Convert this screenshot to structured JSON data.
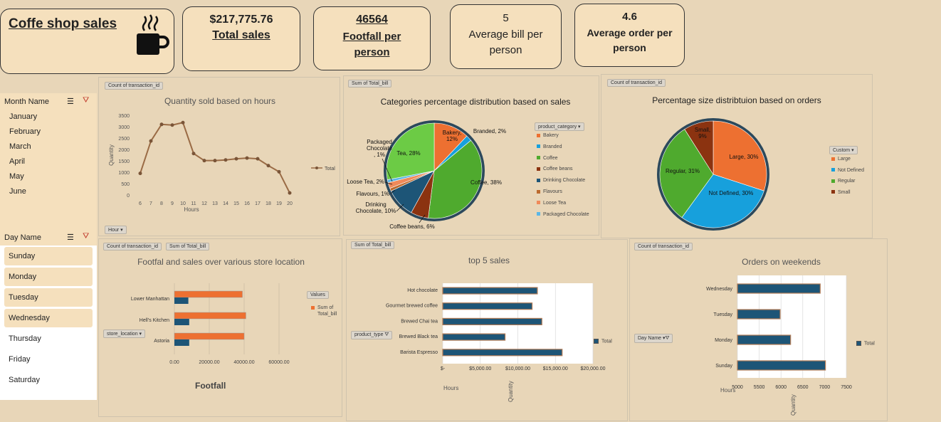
{
  "title": "Coffe shop sales",
  "kpis": {
    "total_sales_value": "$217,775.76",
    "total_sales_label": "Total sales",
    "footfall_value": "46564",
    "footfall_label": "Footfall per person",
    "avg_bill_value": "5",
    "avg_bill_label": "Average bill per person",
    "avg_order_value": "4.6",
    "avg_order_label": "Average order per person"
  },
  "month_slicer": {
    "header": "Month Name",
    "items": [
      "January",
      "February",
      "March",
      "April",
      "May",
      "June"
    ]
  },
  "day_slicer": {
    "header": "Day Name",
    "items": [
      "Sunday",
      "Monday",
      "Tuesday",
      "Wednesday",
      "Thursday",
      "Friday",
      "Saturday"
    ],
    "selected": [
      "Sunday",
      "Monday",
      "Tuesday",
      "Wednesday"
    ]
  },
  "colors": {
    "background": "#e8d6b8",
    "kpi": "#f5e0bd",
    "orange": "#ed7031",
    "blue": "#17a0dc",
    "green": "#4faa2e",
    "lightgreen": "#6ccb45",
    "brown": "#8b3310",
    "navy": "#1d5577",
    "line": "#9a6b45"
  },
  "hours_chart": {
    "tag": "Count of transaction_id",
    "title": "Quantity sold based on hours",
    "ylabel": "Quantity",
    "xlabel": "Hours",
    "legend": "Total",
    "filter_tag": "Hour",
    "chart_data": {
      "type": "line",
      "x": [
        "6",
        "7",
        "8",
        "9",
        "10",
        "11",
        "12",
        "13",
        "14",
        "15",
        "16",
        "17",
        "18",
        "19",
        "20"
      ],
      "values": [
        950,
        2370,
        3100,
        3070,
        3180,
        1820,
        1510,
        1510,
        1540,
        1590,
        1620,
        1590,
        1290,
        1020,
        90
      ],
      "ylim": [
        0,
        3500
      ],
      "yticks": [
        "0",
        "500",
        "1000",
        "1500",
        "2000",
        "2500",
        "3000",
        "3500"
      ]
    }
  },
  "category_pie": {
    "tag": "Sum of Total_bill",
    "title": "Categories percentage distribution based on sales",
    "legend_title": "product_category",
    "chart_data": {
      "type": "pie",
      "slices": [
        {
          "name": "Bakery",
          "label": "Bakery,\n12%",
          "value": 12,
          "color": "#ed7031"
        },
        {
          "name": "Branded",
          "label": "Branded, 2%",
          "value": 2,
          "color": "#17a0dc"
        },
        {
          "name": "Coffee",
          "label": "Coffee, 38%",
          "value": 38,
          "color": "#4faa2e"
        },
        {
          "name": "Coffee beans",
          "label": "Coffee beans, 6%",
          "value": 6,
          "color": "#8b3310"
        },
        {
          "name": "Drinking Chocolate",
          "label": "Drinking\nChocolate, 10%",
          "value": 10,
          "color": "#1d5577"
        },
        {
          "name": "Flavours",
          "label": "Flavours, 1%",
          "value": 1,
          "color": "#bb6a2e"
        },
        {
          "name": "Loose Tea",
          "label": "Loose Tea, 2%",
          "value": 2,
          "color": "#f08a5a"
        },
        {
          "name": "Packaged Chocolate",
          "label": "Packaged\nChocolate\n, 1%",
          "value": 1,
          "color": "#5bb6e6"
        },
        {
          "name": "Tea",
          "label": "Tea, 28%",
          "value": 28,
          "color": "#6ccb45"
        }
      ]
    }
  },
  "size_pie": {
    "tag": "Count of transaction_id",
    "title": "Percentage size distribtuion based on orders",
    "legend_title": "Custom",
    "chart_data": {
      "type": "pie",
      "slices": [
        {
          "name": "Large",
          "label": "Large, 30%",
          "value": 30,
          "color": "#ed7031"
        },
        {
          "name": "Not Defined",
          "label": "Not Defined, 30%",
          "value": 30,
          "color": "#17a0dc"
        },
        {
          "name": "Regular",
          "label": "Regular, 31%",
          "value": 31,
          "color": "#4faa2e"
        },
        {
          "name": "Small",
          "label": "Small,\n9%",
          "value": 9,
          "color": "#8b3310"
        }
      ]
    }
  },
  "location_chart": {
    "tags": [
      "Count of transaction_id",
      "Sum of Total_bill"
    ],
    "title": "Footfal and sales over various store location",
    "xlabel": "Footfall",
    "legend_title": "Values",
    "legend_item": "Sum of Total_bill",
    "filter_tag": "store_location",
    "chart_data": {
      "type": "bar",
      "categories": [
        "Lower Manhattan",
        "Hell's Kitchen",
        "Astoria"
      ],
      "series": [
        {
          "name": "Sum of Total_bill",
          "values": [
            39000,
            41000,
            40000
          ]
        },
        {
          "values": [
            8000,
            8500,
            8500
          ]
        }
      ],
      "xticks": [
        "0.00",
        "20000.00",
        "40000.00",
        "60000.00"
      ],
      "xlim": [
        0,
        60000
      ]
    }
  },
  "top5_chart": {
    "tag": "Sum of Total_bill",
    "title": "top 5 sales",
    "xlabel": "Hours",
    "ylabel": "Quantity",
    "legend": "Total",
    "filter_tag": "product_type",
    "chart_data": {
      "type": "bar",
      "categories": [
        "Hot chocolate",
        "Gourmet brewed coffee",
        "Brewed Chai tea",
        "Brewed Black tea",
        "Barista Espresso"
      ],
      "values": [
        12600,
        11900,
        13200,
        8300,
        15900
      ],
      "xticks": [
        "$-",
        "$5,000.00",
        "$10,000.00",
        "$15,000.00",
        "$20,000.00"
      ],
      "xlim": [
        0,
        20000
      ]
    }
  },
  "weekend_chart": {
    "tag": "Count of transaction_id",
    "title": "Orders on weekends",
    "xlabel": "Hours",
    "ylabel": "Quantity",
    "legend": "Total",
    "filter_tag": "Day Name",
    "chart_data": {
      "type": "bar",
      "categories": [
        "Wednesday",
        "Tuesday",
        "Monday",
        "Sunday"
      ],
      "values": [
        6900,
        5980,
        6220,
        7020
      ],
      "xticks": [
        "5000",
        "5500",
        "6000",
        "6500",
        "7000",
        "7500"
      ],
      "xlim": [
        5000,
        7500
      ]
    }
  }
}
